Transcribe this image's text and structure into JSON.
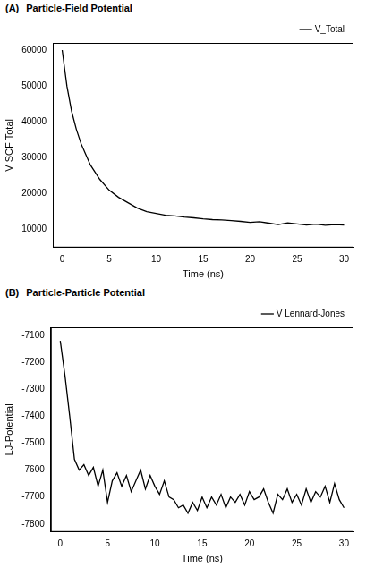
{
  "chart_data": [
    {
      "type": "line",
      "panel": "(A)",
      "title": "Particle-Field Potential",
      "x_label": "Time (ns)",
      "y_label": "V SCF Total",
      "x": [
        0,
        0.5,
        1,
        1.5,
        2,
        2.5,
        3,
        4,
        5,
        6,
        7,
        8,
        9,
        10,
        11,
        12,
        13,
        14,
        15,
        16,
        17,
        18,
        19,
        20,
        21,
        22,
        23,
        24,
        25,
        26,
        27,
        28,
        29,
        30
      ],
      "series": [
        {
          "name": "V_Total",
          "color": "#000000",
          "values": [
            60000,
            50000,
            43000,
            38000,
            34000,
            31000,
            28000,
            24000,
            21000,
            19000,
            17500,
            16000,
            15000,
            14500,
            14000,
            13800,
            13500,
            13300,
            13000,
            12800,
            12700,
            12500,
            12300,
            12000,
            12200,
            11800,
            11400,
            11900,
            11600,
            11300,
            11500,
            11200,
            11400,
            11300
          ]
        }
      ],
      "xlim": [
        -1,
        31
      ],
      "ylim": [
        5000,
        62000
      ],
      "xticks": [
        0,
        5,
        10,
        15,
        20,
        25,
        30
      ],
      "yticks": [
        10000,
        20000,
        30000,
        40000,
        50000,
        60000
      ],
      "grid": false,
      "legend": "top right"
    },
    {
      "type": "line",
      "panel": "(B)",
      "title": "Particle-Particle Potential",
      "x_label": "Time (ns)",
      "y_label": "LJ-Potential",
      "x": [
        0,
        0.5,
        1,
        1.5,
        2,
        2.5,
        3,
        3.5,
        4,
        4.5,
        5,
        5.5,
        6,
        6.5,
        7,
        7.5,
        8,
        8.5,
        9,
        9.5,
        10,
        10.5,
        11,
        11.5,
        12,
        12.5,
        13,
        13.5,
        14,
        14.5,
        15,
        15.5,
        16,
        16.5,
        17,
        17.5,
        18,
        18.5,
        19,
        19.5,
        20,
        20.5,
        21,
        21.5,
        22,
        22.5,
        23,
        23.5,
        24,
        24.5,
        25,
        25.5,
        26,
        26.5,
        27,
        27.5,
        28,
        28.5,
        29,
        29.5,
        30
      ],
      "series": [
        {
          "name": "V Lennard-Jones",
          "color": "#000000",
          "values": [
            -7120,
            -7250,
            -7400,
            -7560,
            -7600,
            -7580,
            -7620,
            -7590,
            -7660,
            -7600,
            -7720,
            -7640,
            -7610,
            -7660,
            -7620,
            -7680,
            -7640,
            -7600,
            -7670,
            -7620,
            -7660,
            -7690,
            -7640,
            -7700,
            -7710,
            -7740,
            -7730,
            -7760,
            -7720,
            -7750,
            -7700,
            -7740,
            -7700,
            -7730,
            -7690,
            -7740,
            -7700,
            -7720,
            -7690,
            -7730,
            -7680,
            -7710,
            -7700,
            -7670,
            -7720,
            -7760,
            -7690,
            -7710,
            -7670,
            -7720,
            -7690,
            -7730,
            -7670,
            -7720,
            -7680,
            -7700,
            -7660,
            -7720,
            -7650,
            -7710,
            -7740
          ]
        }
      ],
      "xlim": [
        -1,
        31
      ],
      "ylim": [
        -7830,
        -7070
      ],
      "xticks": [
        0,
        5,
        10,
        15,
        20,
        25,
        30
      ],
      "yticks": [
        -7800,
        -7700,
        -7600,
        -7500,
        -7400,
        -7300,
        -7200,
        -7100
      ],
      "grid": false,
      "legend": "top right"
    }
  ]
}
